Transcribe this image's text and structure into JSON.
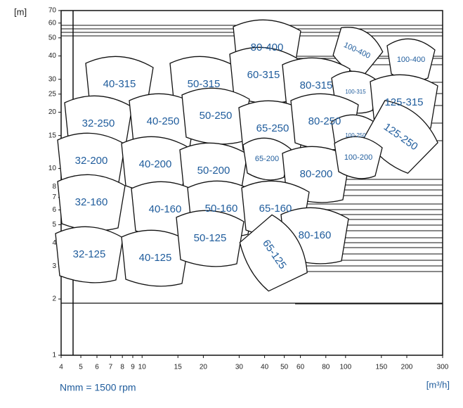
{
  "chart_data": {
    "type": "tile-map",
    "y_unit": "[m]",
    "x_unit": "[m³/h]",
    "note": "Nmm = 1500 rpm",
    "log_x": true,
    "log_y": true,
    "xlim": [
      4,
      300
    ],
    "xticks": [
      4,
      5,
      6,
      7,
      8,
      9,
      10,
      15,
      20,
      30,
      40,
      50,
      60,
      80,
      100,
      150,
      200,
      300
    ],
    "ylim": [
      1,
      70
    ],
    "yticks": [
      1,
      2,
      3,
      4,
      5,
      6,
      7,
      8,
      10,
      15,
      20,
      25,
      30,
      40,
      50,
      60,
      70
    ],
    "color": "#1f5c9c",
    "regions": [
      "80-400",
      "100-400",
      "100-400",
      "40-315",
      "50-315",
      "60-315",
      "80-315",
      "100-315",
      "125-315",
      "32-250",
      "40-250",
      "50-250",
      "65-250",
      "80-250",
      "100-250",
      "125-250",
      "32-200",
      "40-200",
      "50-200",
      "65-200",
      "80-200",
      "100-200",
      "32-160",
      "40-160",
      "50-160",
      "65-160",
      "80-160",
      "32-125",
      "40-125",
      "50-125",
      "65-125"
    ]
  }
}
